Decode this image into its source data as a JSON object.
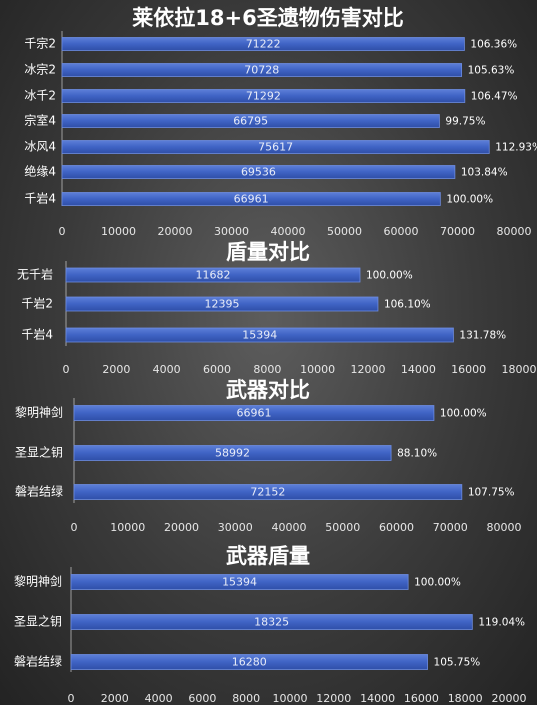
{
  "colors": {
    "bar": "#3f63c4",
    "bar_edge": "#6d8ce0",
    "title": "#ffffff",
    "label": "#ffffff",
    "value": "#e8ecf8",
    "axis": "#e6e6e6",
    "grid": "#6a6a6a"
  },
  "chart_data": [
    {
      "type": "bar",
      "orientation": "horizontal",
      "title": "莱依拉18+6圣遗物伤害对比",
      "categories": [
        "千宗2",
        "冰宗2",
        "冰千2",
        "宗室4",
        "冰风4",
        "绝缘4",
        "千岩4"
      ],
      "values": [
        71222,
        70728,
        71292,
        66795,
        75617,
        69536,
        66961
      ],
      "percent_labels": [
        "106.36%",
        "105.63%",
        "106.47%",
        "99.75%",
        "112.93%",
        "103.84%",
        "100.00%"
      ],
      "xlim": [
        0,
        80000
      ],
      "ticks": [
        0,
        10000,
        20000,
        30000,
        40000,
        50000,
        60000,
        70000,
        80000
      ],
      "grid": false,
      "legend": "none"
    },
    {
      "type": "bar",
      "orientation": "horizontal",
      "title": "盾量对比",
      "categories": [
        "无千岩",
        "千岩2",
        "千岩4"
      ],
      "values": [
        11682,
        12395,
        15394
      ],
      "percent_labels": [
        "100.00%",
        "106.10%",
        "131.78%"
      ],
      "xlim": [
        0,
        18000
      ],
      "ticks": [
        0,
        2000,
        4000,
        6000,
        8000,
        10000,
        12000,
        14000,
        16000,
        18000
      ],
      "grid": false,
      "legend": "none"
    },
    {
      "type": "bar",
      "orientation": "horizontal",
      "title": "武器对比",
      "categories": [
        "黎明神剑",
        "圣显之钥",
        "磐岩结绿"
      ],
      "values": [
        66961,
        58992,
        72152
      ],
      "percent_labels": [
        "100.00%",
        "88.10%",
        "107.75%"
      ],
      "xlim": [
        0,
        80000
      ],
      "ticks": [
        0,
        10000,
        20000,
        30000,
        40000,
        50000,
        60000,
        70000,
        80000
      ],
      "grid": false,
      "legend": "none"
    },
    {
      "type": "bar",
      "orientation": "horizontal",
      "title": "武器盾量",
      "categories": [
        "黎明神剑",
        "圣显之钥",
        "磐岩结绿"
      ],
      "values": [
        15394,
        18325,
        16280
      ],
      "percent_labels": [
        "100.00%",
        "119.04%",
        "105.75%"
      ],
      "xlim": [
        0,
        20000
      ],
      "ticks": [
        0,
        2000,
        4000,
        6000,
        8000,
        10000,
        12000,
        14000,
        16000,
        18000,
        20000
      ],
      "grid": false,
      "legend": "none"
    }
  ]
}
